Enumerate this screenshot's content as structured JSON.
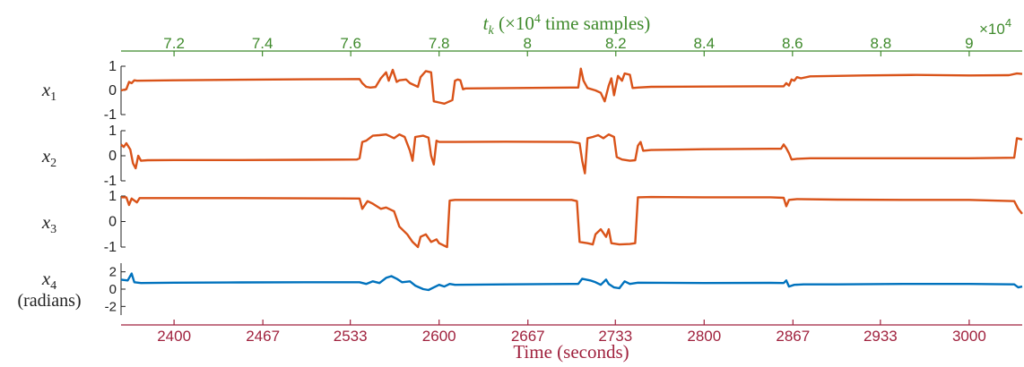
{
  "chart_data": {
    "type": "line",
    "top_axis": {
      "label_var": "t",
      "label_sub": "k",
      "label_rest_a": " (×10",
      "label_sup": "4",
      "label_rest_b": " time samples)",
      "multiplier_base": "×10",
      "multiplier_exp": "4",
      "ticks": [
        "7.2",
        "7.4",
        "7.6",
        "7.8",
        "8",
        "8.2",
        "8.4",
        "8.6",
        "8.8",
        "9"
      ],
      "tick_values": [
        7.2,
        7.4,
        7.6,
        7.8,
        8.0,
        8.2,
        8.4,
        8.6,
        8.8,
        9.0
      ],
      "range": [
        7.08,
        9.12
      ],
      "color": "#3f8a2c"
    },
    "bottom_axis": {
      "label": "Time (seconds)",
      "ticks": [
        "2400",
        "2467",
        "2533",
        "2600",
        "2667",
        "2733",
        "2800",
        "2867",
        "2933",
        "3000"
      ],
      "tick_values": [
        2400,
        2467,
        2533,
        2600,
        2667,
        2733,
        2800,
        2867,
        2933,
        3000
      ],
      "range": [
        2360,
        3040
      ],
      "color": "#a0223e"
    },
    "panels": [
      {
        "label_var": "x",
        "label_sub": "1",
        "label_extra": "",
        "ylim": [
          -1,
          1
        ],
        "yticks": [
          "1",
          "0",
          "-1"
        ],
        "ytick_values": [
          1,
          0,
          -1
        ],
        "color": "#d95319",
        "series": [
          [
            2360,
            0.0
          ],
          [
            2364,
            0.05
          ],
          [
            2366,
            0.35
          ],
          [
            2368,
            0.3
          ],
          [
            2370,
            0.42
          ],
          [
            2372,
            0.4
          ],
          [
            2400,
            0.42
          ],
          [
            2450,
            0.44
          ],
          [
            2500,
            0.46
          ],
          [
            2540,
            0.47
          ],
          [
            2542,
            0.3
          ],
          [
            2545,
            0.15
          ],
          [
            2548,
            0.12
          ],
          [
            2552,
            0.14
          ],
          [
            2556,
            0.5
          ],
          [
            2560,
            0.75
          ],
          [
            2562,
            0.4
          ],
          [
            2565,
            0.85
          ],
          [
            2568,
            0.35
          ],
          [
            2570,
            0.42
          ],
          [
            2575,
            0.45
          ],
          [
            2578,
            0.3
          ],
          [
            2582,
            0.2
          ],
          [
            2584,
            0.15
          ],
          [
            2586,
            0.55
          ],
          [
            2590,
            0.8
          ],
          [
            2594,
            0.75
          ],
          [
            2596,
            -0.45
          ],
          [
            2600,
            -0.5
          ],
          [
            2604,
            -0.55
          ],
          [
            2608,
            -0.45
          ],
          [
            2610,
            -0.4
          ],
          [
            2612,
            0.4
          ],
          [
            2614,
            0.45
          ],
          [
            2616,
            0.42
          ],
          [
            2618,
            0.05
          ],
          [
            2620,
            0.08
          ],
          [
            2660,
            0.1
          ],
          [
            2700,
            0.12
          ],
          [
            2705,
            0.12
          ],
          [
            2707,
            0.9
          ],
          [
            2709,
            0.4
          ],
          [
            2712,
            0.1
          ],
          [
            2718,
            0.0
          ],
          [
            2722,
            -0.1
          ],
          [
            2725,
            -0.45
          ],
          [
            2728,
            0.2
          ],
          [
            2730,
            0.5
          ],
          [
            2732,
            -0.2
          ],
          [
            2735,
            0.6
          ],
          [
            2738,
            0.4
          ],
          [
            2740,
            0.7
          ],
          [
            2744,
            0.65
          ],
          [
            2746,
            0.1
          ],
          [
            2750,
            0.12
          ],
          [
            2760,
            0.15
          ],
          [
            2800,
            0.16
          ],
          [
            2840,
            0.17
          ],
          [
            2860,
            0.17
          ],
          [
            2862,
            0.3
          ],
          [
            2864,
            0.2
          ],
          [
            2866,
            0.45
          ],
          [
            2868,
            0.4
          ],
          [
            2870,
            0.55
          ],
          [
            2873,
            0.5
          ],
          [
            2880,
            0.58
          ],
          [
            2920,
            0.62
          ],
          [
            2960,
            0.64
          ],
          [
            3000,
            0.62
          ],
          [
            3030,
            0.63
          ],
          [
            3036,
            0.7
          ],
          [
            3040,
            0.68
          ]
        ]
      },
      {
        "label_var": "x",
        "label_sub": "2",
        "label_extra": "",
        "ylim": [
          -1,
          1
        ],
        "yticks": [
          "1",
          "0",
          "-1"
        ],
        "ytick_values": [
          1,
          0,
          -1
        ],
        "color": "#d95319",
        "series": [
          [
            2360,
            0.45
          ],
          [
            2362,
            0.35
          ],
          [
            2364,
            0.5
          ],
          [
            2367,
            0.25
          ],
          [
            2369,
            -0.3
          ],
          [
            2371,
            -0.5
          ],
          [
            2373,
            0.0
          ],
          [
            2375,
            -0.2
          ],
          [
            2380,
            -0.18
          ],
          [
            2400,
            -0.17
          ],
          [
            2450,
            -0.17
          ],
          [
            2500,
            -0.16
          ],
          [
            2538,
            -0.15
          ],
          [
            2540,
            -0.1
          ],
          [
            2542,
            0.55
          ],
          [
            2545,
            0.6
          ],
          [
            2550,
            0.8
          ],
          [
            2555,
            0.82
          ],
          [
            2560,
            0.85
          ],
          [
            2566,
            0.7
          ],
          [
            2570,
            0.85
          ],
          [
            2574,
            0.75
          ],
          [
            2578,
            0.2
          ],
          [
            2580,
            -0.2
          ],
          [
            2582,
            0.75
          ],
          [
            2588,
            0.8
          ],
          [
            2592,
            0.72
          ],
          [
            2594,
            0.0
          ],
          [
            2596,
            -0.35
          ],
          [
            2598,
            0.6
          ],
          [
            2600,
            0.55
          ],
          [
            2610,
            0.55
          ],
          [
            2650,
            0.56
          ],
          [
            2700,
            0.55
          ],
          [
            2706,
            0.5
          ],
          [
            2708,
            -0.2
          ],
          [
            2710,
            -0.7
          ],
          [
            2712,
            0.7
          ],
          [
            2716,
            0.75
          ],
          [
            2720,
            0.82
          ],
          [
            2724,
            0.7
          ],
          [
            2728,
            0.85
          ],
          [
            2732,
            0.75
          ],
          [
            2734,
            -0.05
          ],
          [
            2738,
            -0.15
          ],
          [
            2744,
            -0.2
          ],
          [
            2748,
            -0.18
          ],
          [
            2750,
            0.4
          ],
          [
            2752,
            0.55
          ],
          [
            2754,
            0.2
          ],
          [
            2760,
            0.23
          ],
          [
            2800,
            0.26
          ],
          [
            2850,
            0.28
          ],
          [
            2858,
            0.28
          ],
          [
            2860,
            0.45
          ],
          [
            2862,
            0.3
          ],
          [
            2864,
            0.1
          ],
          [
            2866,
            -0.15
          ],
          [
            2870,
            -0.12
          ],
          [
            2880,
            -0.1
          ],
          [
            2920,
            -0.1
          ],
          [
            2960,
            -0.1
          ],
          [
            3000,
            -0.1
          ],
          [
            3034,
            -0.08
          ],
          [
            3036,
            0.7
          ],
          [
            3040,
            0.65
          ]
        ]
      },
      {
        "label_var": "x",
        "label_sub": "3",
        "label_extra": "",
        "ylim": [
          -1,
          1
        ],
        "yticks": [
          "1",
          "0",
          "-1"
        ],
        "ytick_values": [
          1,
          0,
          -1
        ],
        "color": "#d95319",
        "series": [
          [
            2360,
            0.95
          ],
          [
            2364,
            0.95
          ],
          [
            2366,
            0.65
          ],
          [
            2368,
            0.9
          ],
          [
            2372,
            0.75
          ],
          [
            2374,
            0.92
          ],
          [
            2400,
            0.92
          ],
          [
            2450,
            0.92
          ],
          [
            2500,
            0.91
          ],
          [
            2540,
            0.9
          ],
          [
            2542,
            0.5
          ],
          [
            2546,
            0.8
          ],
          [
            2550,
            0.7
          ],
          [
            2556,
            0.5
          ],
          [
            2560,
            0.55
          ],
          [
            2566,
            0.4
          ],
          [
            2570,
            -0.2
          ],
          [
            2576,
            -0.5
          ],
          [
            2580,
            -0.8
          ],
          [
            2584,
            -1.0
          ],
          [
            2586,
            -0.6
          ],
          [
            2590,
            -0.5
          ],
          [
            2594,
            -0.8
          ],
          [
            2598,
            -0.7
          ],
          [
            2600,
            -0.85
          ],
          [
            2604,
            -0.95
          ],
          [
            2606,
            -1.0
          ],
          [
            2608,
            0.82
          ],
          [
            2612,
            0.85
          ],
          [
            2650,
            0.85
          ],
          [
            2700,
            0.85
          ],
          [
            2704,
            0.8
          ],
          [
            2706,
            -0.8
          ],
          [
            2712,
            -0.85
          ],
          [
            2716,
            -0.9
          ],
          [
            2718,
            -0.5
          ],
          [
            2722,
            -0.3
          ],
          [
            2726,
            -0.6
          ],
          [
            2728,
            -0.3
          ],
          [
            2730,
            -0.85
          ],
          [
            2736,
            -0.9
          ],
          [
            2744,
            -0.88
          ],
          [
            2748,
            -0.85
          ],
          [
            2750,
            0.95
          ],
          [
            2760,
            0.96
          ],
          [
            2800,
            0.95
          ],
          [
            2850,
            0.95
          ],
          [
            2860,
            0.93
          ],
          [
            2862,
            0.6
          ],
          [
            2864,
            0.85
          ],
          [
            2870,
            0.88
          ],
          [
            2900,
            0.86
          ],
          [
            2950,
            0.85
          ],
          [
            3000,
            0.85
          ],
          [
            3034,
            0.8
          ],
          [
            3037,
            0.5
          ],
          [
            3040,
            0.3
          ]
        ]
      },
      {
        "label_var": "x",
        "label_sub": "4",
        "label_extra": "(radians)",
        "ylim": [
          -3,
          3
        ],
        "yticks": [
          "2",
          "0",
          "-2"
        ],
        "ytick_values": [
          2,
          0,
          -2
        ],
        "color": "#0072bd",
        "series": [
          [
            2360,
            1.1
          ],
          [
            2365,
            1.0
          ],
          [
            2368,
            1.8
          ],
          [
            2370,
            0.8
          ],
          [
            2375,
            0.7
          ],
          [
            2400,
            0.75
          ],
          [
            2450,
            0.78
          ],
          [
            2500,
            0.8
          ],
          [
            2540,
            0.8
          ],
          [
            2545,
            0.6
          ],
          [
            2550,
            0.9
          ],
          [
            2555,
            0.7
          ],
          [
            2560,
            1.3
          ],
          [
            2564,
            1.5
          ],
          [
            2568,
            1.2
          ],
          [
            2572,
            0.8
          ],
          [
            2578,
            0.9
          ],
          [
            2582,
            0.4
          ],
          [
            2588,
            0.0
          ],
          [
            2592,
            -0.1
          ],
          [
            2596,
            0.2
          ],
          [
            2600,
            0.5
          ],
          [
            2604,
            0.3
          ],
          [
            2608,
            0.6
          ],
          [
            2612,
            0.5
          ],
          [
            2650,
            0.55
          ],
          [
            2700,
            0.6
          ],
          [
            2705,
            0.6
          ],
          [
            2708,
            1.2
          ],
          [
            2714,
            1.0
          ],
          [
            2718,
            0.8
          ],
          [
            2722,
            0.5
          ],
          [
            2726,
            1.1
          ],
          [
            2728,
            0.6
          ],
          [
            2732,
            0.2
          ],
          [
            2736,
            0.1
          ],
          [
            2740,
            0.9
          ],
          [
            2744,
            0.6
          ],
          [
            2750,
            0.75
          ],
          [
            2800,
            0.7
          ],
          [
            2850,
            0.72
          ],
          [
            2860,
            0.7
          ],
          [
            2862,
            1.0
          ],
          [
            2864,
            0.3
          ],
          [
            2868,
            0.5
          ],
          [
            2875,
            0.55
          ],
          [
            2900,
            0.55
          ],
          [
            2950,
            0.6
          ],
          [
            3000,
            0.6
          ],
          [
            3034,
            0.55
          ],
          [
            3037,
            0.2
          ],
          [
            3040,
            0.3
          ]
        ]
      }
    ]
  }
}
